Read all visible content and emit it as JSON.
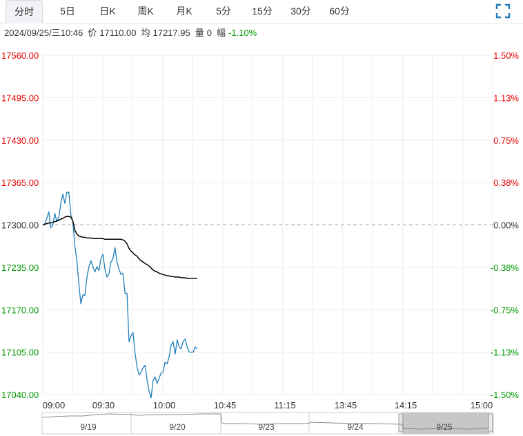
{
  "tabs": [
    {
      "label": "分时",
      "active": true
    },
    {
      "label": "5日",
      "active": false
    },
    {
      "label": "日K",
      "active": false
    },
    {
      "label": "周K",
      "active": false
    },
    {
      "label": "月K",
      "active": false
    },
    {
      "label": "5分",
      "active": false
    },
    {
      "label": "15分",
      "active": false
    },
    {
      "label": "30分",
      "active": false
    },
    {
      "label": "60分",
      "active": false
    }
  ],
  "fullscreen_icon": "expand-corners-icon",
  "info": {
    "datetime": "2024/09/25/三10:46",
    "price_label": "价",
    "price": "17110.00",
    "avg_label": "均",
    "avg": "17217.95",
    "volume_label": "量",
    "volume": "0",
    "change_label": "幅",
    "change": "-1.10%"
  },
  "colors": {
    "up": "#e60000",
    "down": "#009900",
    "neutral": "#333333",
    "price_line": "#1e7fb8",
    "avg_line": "#000000",
    "grid": "#ececec",
    "baseline": "#9a9a9a"
  },
  "chart_data": {
    "type": "line",
    "y_ticks": [
      "17560.00",
      "17495.00",
      "17430.00",
      "17365.00",
      "17300.00",
      "17235.00",
      "17170.00",
      "17105.00",
      "17040.00"
    ],
    "pct_ticks": [
      "1.50%",
      "1.13%",
      "0.75%",
      "0.38%",
      "0.00%",
      "-0.38%",
      "-0.75%",
      "-1.13%",
      "-1.50%"
    ],
    "x_ticks": [
      "09:00",
      "09:30",
      "10:00",
      "10:45",
      "11:15",
      "13:45",
      "14:15",
      "15:00"
    ],
    "ylim": [
      17040,
      17560
    ],
    "baseline": 17300,
    "grid": true,
    "series": [
      {
        "values": [
          17299,
          17302,
          17310,
          17320,
          17296,
          17299,
          17318,
          17305,
          17312,
          17333,
          17347,
          17333,
          17350,
          17350,
          17316,
          17305,
          17268,
          17245,
          17210,
          17179,
          17193,
          17192,
          17220,
          17236,
          17245,
          17236,
          17228,
          17236,
          17230,
          17248,
          17255,
          17232,
          17220,
          17225,
          17243,
          17248,
          17265,
          17243,
          17232,
          17224,
          17226,
          17195,
          17195,
          17121,
          17130,
          17135,
          17104,
          17082,
          17070,
          17074,
          17081,
          17085,
          17062,
          17045,
          17035,
          17062,
          17067,
          17057,
          17065,
          17073,
          17075,
          17090,
          17087,
          17098,
          17116,
          17121,
          17102,
          17124,
          17113,
          17110,
          17122,
          17125,
          17113,
          17105,
          17105,
          17105,
          17113,
          17110
        ]
      },
      {
        "values": [
          17300,
          17301,
          17302,
          17303,
          17303,
          17304,
          17305,
          17306,
          17307,
          17309,
          17310,
          17312,
          17313,
          17313,
          17312,
          17306,
          17292,
          17286,
          17283,
          17282,
          17281,
          17281,
          17280,
          17280,
          17280,
          17279,
          17279,
          17279,
          17279,
          17279,
          17279,
          17278,
          17278,
          17278,
          17278,
          17278,
          17278,
          17278,
          17278,
          17278,
          17277,
          17275,
          17271,
          17264,
          17260,
          17257,
          17254,
          17252,
          17248,
          17245,
          17243,
          17241,
          17239,
          17237,
          17234,
          17231,
          17229,
          17228,
          17226,
          17225,
          17224,
          17223,
          17222,
          17222,
          17221,
          17221,
          17220,
          17220,
          17220,
          17219,
          17219,
          17219,
          17218,
          17218,
          17218,
          17218,
          17218,
          17218
        ]
      }
    ]
  },
  "navigator": {
    "labels": [
      "9/19",
      "9/20",
      "9/23",
      "9/24",
      "9/25"
    ]
  }
}
